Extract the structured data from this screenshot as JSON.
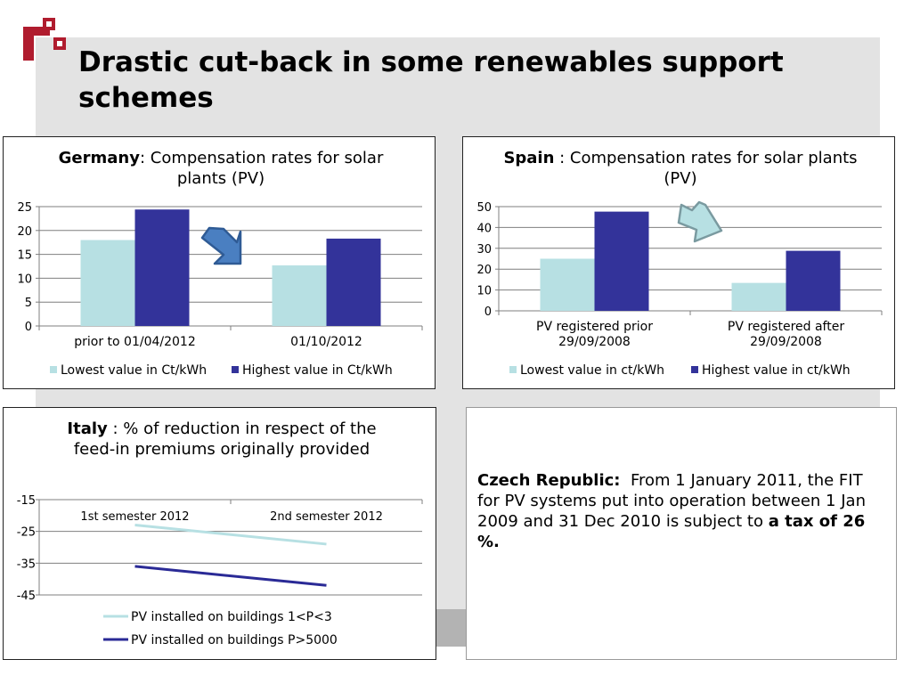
{
  "slide": {
    "title": "Drastic cut-back in some renewables support schemes"
  },
  "colors": {
    "lowest": "#b7e0e3",
    "highest": "#33339a",
    "italy_line1": "#b7e0e3",
    "italy_line2": "#2a2a96",
    "logo": "#b01c2e",
    "arrow_down": "#4a7fc1",
    "arrow_up": "#b7e0e3"
  },
  "czech": {
    "label": "Czech Republic:",
    "text": "From 1 January 2011, the FIT for PV systems put into operation between 1 Jan 2009 and 31 Dec 2010 is subject to",
    "bold_tail": "a tax of 26 %."
  },
  "chart_data": [
    {
      "id": "germany",
      "type": "bar",
      "title_bold": "Germany",
      "title_rest": ": Compensation rates for solar plants (PV)",
      "categories": [
        "prior to 01/04/2012",
        "01/10/2012"
      ],
      "series": [
        {
          "name": "Lowest value in Ct/kWh",
          "values": [
            18,
            12.7
          ]
        },
        {
          "name": "Highest value in Ct/kWh",
          "values": [
            24.4,
            18.3
          ]
        }
      ],
      "ylim": [
        0,
        25
      ],
      "yticks": [
        0,
        5,
        10,
        15,
        20,
        25
      ],
      "grid": true,
      "legend": "bottom",
      "arrow": "down-right"
    },
    {
      "id": "spain",
      "type": "bar",
      "title_bold": "Spain",
      "title_rest": " : Compensation rates for solar plants (PV)",
      "categories": [
        "PV registered prior 29/09/2008",
        "PV registered after 29/09/2008"
      ],
      "series": [
        {
          "name": "Lowest value in ct/kWh",
          "values": [
            25,
            13.4
          ]
        },
        {
          "name": "Highest value in ct/kWh",
          "values": [
            47.6,
            28.8
          ]
        }
      ],
      "ylim": [
        0,
        50
      ],
      "yticks": [
        0,
        10,
        20,
        30,
        40,
        50
      ],
      "grid": true,
      "legend": "bottom",
      "arrow": "down-right"
    },
    {
      "id": "italy",
      "type": "line",
      "title_bold": "Italy",
      "title_rest": " : % of reduction in respect of the feed-in premiums originally provided",
      "categories": [
        "1st semester 2012",
        "2nd semester 2012"
      ],
      "series": [
        {
          "name": "PV installed on buildings 1<P<3",
          "values": [
            -23,
            -29
          ]
        },
        {
          "name": "PV installed on buildings P>5000",
          "values": [
            -36,
            -42
          ]
        }
      ],
      "ylim": [
        -45,
        -15
      ],
      "yticks": [
        -15,
        -25,
        -35,
        -45
      ],
      "grid": true,
      "legend": "bottom"
    }
  ]
}
